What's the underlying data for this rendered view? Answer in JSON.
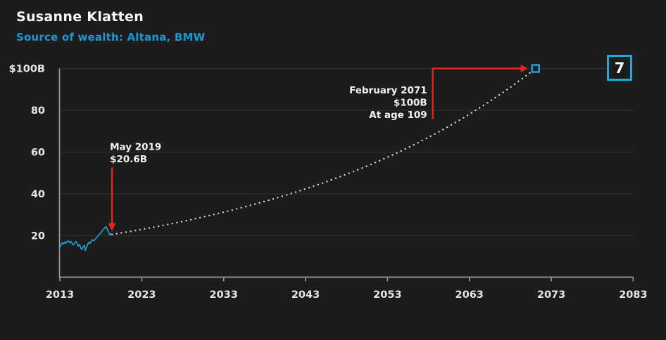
{
  "page": {
    "title": "Susanne Klatten",
    "subtitle": "Source of wealth: Altana, BMW",
    "rank_badge": "7"
  },
  "colors": {
    "background": "#1c1c1c",
    "title_text": "#f7f7f7",
    "subtitle_blue": "#1d96d4",
    "historical_line": "#1e9cd7",
    "projection_dots": "#d9d9d9",
    "annotation_red": "#e3261b",
    "marker_cyan": "#1fa8e0",
    "grid_line": "#2f2f2f",
    "axis_line": "#9b9b9b",
    "tick_text": "#e6e6e6",
    "annotation_text": "#f2f2f2"
  },
  "chart_data": {
    "type": "line",
    "title": "Susanne Klatten",
    "subtitle": "Source of wealth: Altana, BMW",
    "rank_badge": "7",
    "grid": "horizontal-only",
    "legend": "none",
    "x_axis": {
      "min": 2013,
      "max": 2083.5,
      "tick_years": [
        2013,
        2023,
        2033,
        2043,
        2053,
        2063,
        2073,
        2083
      ]
    },
    "y_axis": {
      "min": 0,
      "max": 100,
      "unit": "billions USD",
      "ticks": [
        {
          "value": 100,
          "label": "$100B"
        },
        {
          "value": 80,
          "label": "80"
        },
        {
          "value": 60,
          "label": "60"
        },
        {
          "value": 40,
          "label": "40"
        },
        {
          "value": 20,
          "label": "20"
        }
      ]
    },
    "series": [
      {
        "name": "historical-wealth",
        "type": "line",
        "color": "#1e9cd7",
        "points": [
          [
            2013.0,
            14.2
          ],
          [
            2013.15,
            15.8
          ],
          [
            2013.3,
            16.6
          ],
          [
            2013.45,
            16.0
          ],
          [
            2013.6,
            17.0
          ],
          [
            2013.75,
            16.4
          ],
          [
            2013.9,
            17.2
          ],
          [
            2014.05,
            17.5
          ],
          [
            2014.2,
            16.6
          ],
          [
            2014.35,
            17.3
          ],
          [
            2014.5,
            16.2
          ],
          [
            2014.65,
            15.6
          ],
          [
            2014.8,
            16.4
          ],
          [
            2014.95,
            17.2
          ],
          [
            2015.1,
            16.4
          ],
          [
            2015.25,
            15.0
          ],
          [
            2015.4,
            15.8
          ],
          [
            2015.55,
            14.2
          ],
          [
            2015.7,
            13.4
          ],
          [
            2015.85,
            14.8
          ],
          [
            2016.0,
            15.4
          ],
          [
            2016.1,
            12.9
          ],
          [
            2016.25,
            14.3
          ],
          [
            2016.4,
            15.9
          ],
          [
            2016.55,
            16.9
          ],
          [
            2016.7,
            16.3
          ],
          [
            2016.85,
            17.4
          ],
          [
            2017.0,
            18.1
          ],
          [
            2017.15,
            17.5
          ],
          [
            2017.3,
            18.3
          ],
          [
            2017.45,
            18.9
          ],
          [
            2017.6,
            19.6
          ],
          [
            2017.75,
            20.3
          ],
          [
            2017.9,
            20.9
          ],
          [
            2018.05,
            21.6
          ],
          [
            2018.2,
            22.5
          ],
          [
            2018.35,
            23.2
          ],
          [
            2018.5,
            23.8
          ],
          [
            2018.65,
            24.4
          ],
          [
            2018.8,
            22.9
          ],
          [
            2018.95,
            21.7
          ],
          [
            2019.1,
            20.3
          ],
          [
            2019.22,
            20.9
          ],
          [
            2019.37,
            20.6
          ]
        ]
      },
      {
        "name": "projected-wealth",
        "type": "dotted-exponential",
        "color": "#d9d9d9",
        "start": {
          "year": 2019.37,
          "value": 20.6
        },
        "end": {
          "year": 2071.08,
          "value": 100
        },
        "end_marker": "open-square",
        "end_marker_color": "#1fa8e0"
      }
    ],
    "annotations": [
      {
        "id": "may-2019",
        "lines": [
          "May 2019",
          "$20.6B"
        ],
        "target_year": 2019.37,
        "target_value": 20.6,
        "arrow": "down",
        "align": "left",
        "color": "#e3261b"
      },
      {
        "id": "february-2071",
        "lines": [
          "February 2071",
          "$100B",
          "At age 109"
        ],
        "target_year": 2071.08,
        "target_value": 100,
        "arrow": "elbow-right",
        "align": "right",
        "color": "#e3261b"
      }
    ]
  }
}
